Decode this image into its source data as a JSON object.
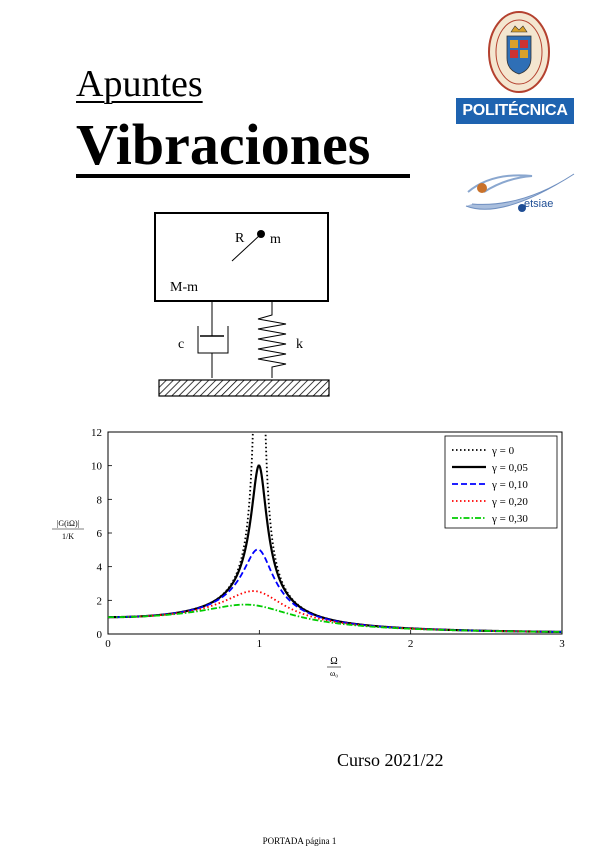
{
  "title": {
    "small": "Apuntes",
    "big": "Vibraciones"
  },
  "logos": {
    "upm_banner": "POLITÉCNICA",
    "etsiae_text": "etsiae"
  },
  "diagram": {
    "label_R": "R",
    "label_m": "m",
    "label_Mm": "M-m",
    "label_c": "c",
    "label_k": "k"
  },
  "chart_data": {
    "type": "line",
    "xlim": [
      0,
      3
    ],
    "ylim": [
      0,
      12
    ],
    "xticks": [
      "0",
      "1",
      "2",
      "3"
    ],
    "yticks": [
      "0",
      "2",
      "4",
      "6",
      "8",
      "10",
      "12"
    ],
    "xlabel_num": "Ω",
    "xlabel_den": "ω₀",
    "ylabel_num": "|G(iΩ)|",
    "ylabel_den": "1/K",
    "legend_position": "top-right",
    "series": [
      {
        "name": "γ = 0",
        "gamma": 0,
        "color": "#000000",
        "style": "dotted"
      },
      {
        "name": "γ = 0,05",
        "gamma": 0.05,
        "color": "#000000",
        "style": "solid"
      },
      {
        "name": "γ = 0,10",
        "gamma": 0.1,
        "color": "#0000ff",
        "style": "dashed"
      },
      {
        "name": "γ = 0,20",
        "gamma": 0.2,
        "color": "#ff0000",
        "style": "dotted"
      },
      {
        "name": "γ = 0,30",
        "gamma": 0.3,
        "color": "#00cc00",
        "style": "dashdot"
      }
    ]
  },
  "course": "Curso 2021/22",
  "footer": "PORTADA página 1"
}
